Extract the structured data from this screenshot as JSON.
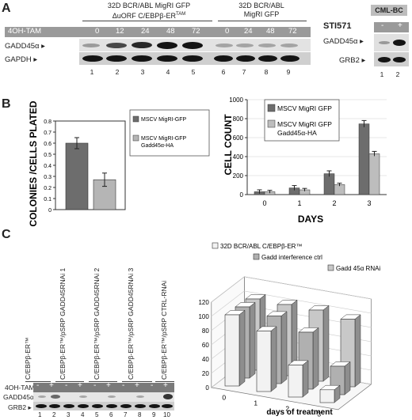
{
  "panel_a": {
    "letter": "A",
    "group1_line1": "32D BCR/ABL MigRI GFP",
    "group1_line2": "ΔuORF C/EBPβ-ER",
    "group1_sup": "TAM",
    "group2_line1": "32D BCR/ABL",
    "group2_line2": "MigRI  GFP",
    "treatment_label": "4OH-TAM",
    "timepoints": [
      "0",
      "12",
      "24",
      "48",
      "72",
      "0",
      "24",
      "48",
      "72"
    ],
    "row1_label": "GADD45α",
    "row2_label": "GAPDH",
    "lanes": [
      "1",
      "2",
      "3",
      "4",
      "5",
      "6",
      "7",
      "8",
      "9"
    ],
    "right_title": "CML-BC",
    "right_drug": "STI571",
    "right_signs": [
      "-",
      "+"
    ],
    "right_row1": "GADD45α",
    "right_row2": "GRB2",
    "right_lanes": [
      "1",
      "2"
    ]
  },
  "panel_b": {
    "letter": "B"
  },
  "panel_c": {
    "letter": "C",
    "constructs": [
      "C/EBPβ-ER™",
      "C/EBPβ-ER™/pSRP GADD45RNAi 1",
      "C/EBPβ-ER™/pSRP GADD45RNAi 2",
      "C/EBPβ-ER™/pSRP GADD45RNAi 3",
      "C/EBPβ-ER™/pSRP CTRL-RNAi"
    ],
    "treatment_label": "4OH-TAM",
    "signs": [
      "-",
      "+",
      "-",
      "+",
      "-",
      "+",
      "-",
      "+",
      "-",
      "+"
    ],
    "row1_label": "GADD45α",
    "row2_label": "GRB2",
    "lanes": [
      "1",
      "2",
      "3",
      "4",
      "5",
      "6",
      "7",
      "8",
      "9",
      "10"
    ]
  },
  "chart_data": [
    {
      "type": "bar",
      "ylabel": "COLONIES /CELLS PLATED",
      "ylim": [
        0,
        0.8
      ],
      "yticks": [
        "0",
        "0.1",
        "0.2",
        "0.3",
        "0.4",
        "0.5",
        "0.6",
        "0.7",
        "0.8"
      ],
      "series": [
        {
          "name": "MSCV MigRI-GFP",
          "values": [
            0.6
          ],
          "err": [
            0.05
          ],
          "color": "#6d6d6d"
        },
        {
          "name": "MSCV MigRI-GFP Gadd45α-HA",
          "values": [
            0.27
          ],
          "err": [
            0.06
          ],
          "color": "#b5b5b5"
        }
      ],
      "legend_position": "right"
    },
    {
      "type": "bar",
      "xlabel": "DAYS",
      "ylabel": "CELL COUNT",
      "categories": [
        "0",
        "1",
        "2",
        "3"
      ],
      "ylim": [
        0,
        1000
      ],
      "yticks": [
        "0",
        "200",
        "400",
        "600",
        "800",
        "1000"
      ],
      "series": [
        {
          "name": "MSCV MigRI GFP",
          "values": [
            30,
            70,
            220,
            745
          ],
          "err": [
            20,
            25,
            30,
            35
          ],
          "color": "#6d6d6d"
        },
        {
          "name": "MSCV MigRI GFP Gadd45α-HA",
          "values": [
            30,
            50,
            105,
            430
          ],
          "err": [
            15,
            15,
            15,
            25
          ],
          "color": "#bdbdbd"
        }
      ],
      "legend_position": "top-left"
    },
    {
      "type": "bar",
      "xlabel": "days of treatment",
      "categories": [
        "0",
        "1",
        "2",
        "3"
      ],
      "zlim": [
        0,
        120
      ],
      "zticks": [
        "0",
        "20",
        "40",
        "60",
        "80",
        "100",
        "120"
      ],
      "series": [
        {
          "name": "32D BCR/ABL C/EBPβ-ER™",
          "values": [
            100,
            85,
            45,
            18
          ],
          "color": "#f2f2f2"
        },
        {
          "name": "Gadd interference ctrl",
          "values": [
            100,
            95,
            80,
            40
          ],
          "color": "#b0b0b0"
        },
        {
          "name": "Gadd 45α RNAi",
          "values": [
            100,
            100,
            100,
            95
          ],
          "color": "#c8c8c8"
        }
      ],
      "legend_position": "top"
    }
  ]
}
